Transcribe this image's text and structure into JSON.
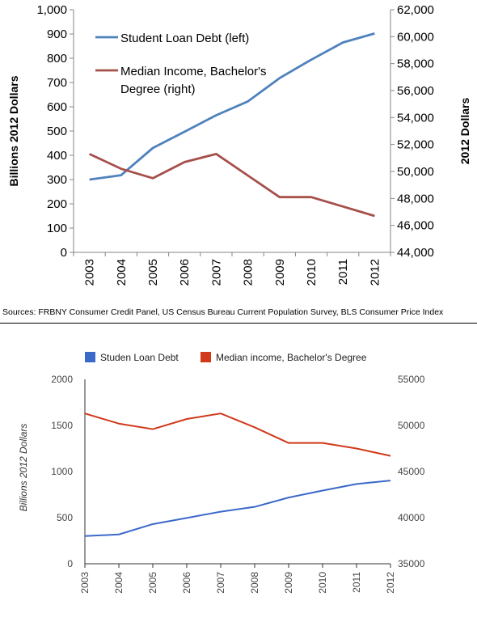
{
  "chart_data": [
    {
      "type": "line",
      "x": [
        "2003",
        "2004",
        "2005",
        "2006",
        "2007",
        "2008",
        "2009",
        "2010",
        "2011",
        "2012"
      ],
      "ylabel": "Billions 2012 Dollars",
      "y2label": "2012 Dollars",
      "ylim": [
        0,
        1000
      ],
      "y2lim": [
        44000,
        62000
      ],
      "yticks": [
        "0",
        "100",
        "200",
        "300",
        "400",
        "500",
        "600",
        "700",
        "800",
        "900",
        "1,000"
      ],
      "y2ticks": [
        "44,000",
        "46,000",
        "48,000",
        "50,000",
        "52,000",
        "54,000",
        "56,000",
        "58,000",
        "60,000",
        "62,000"
      ],
      "grid": false,
      "legend_position": "top-left",
      "series": [
        {
          "name": "Student Loan Debt (left)",
          "axis": "left",
          "color": "#4f81bd",
          "values": [
            300,
            318,
            430,
            497,
            565,
            622,
            718,
            794,
            865,
            902
          ]
        },
        {
          "name": "Median Income, Bachelor's Degree (right)",
          "axis": "right",
          "color": "#a5504b",
          "values": [
            51300,
            50200,
            49500,
            50700,
            51300,
            49700,
            48100,
            48100,
            47400,
            46700
          ]
        }
      ],
      "legend_lines": [
        [
          "Student Loan Debt (left)"
        ],
        [
          "Median Income, Bachelor's",
          "Degree (right)"
        ]
      ]
    },
    {
      "type": "line",
      "x": [
        "2003",
        "2004",
        "2005",
        "2006",
        "2007",
        "2008",
        "2009",
        "2010",
        "2011",
        "2012"
      ],
      "ylabel": "Billions 2012 Dollars",
      "ylim": [
        0,
        2000
      ],
      "y2lim": [
        35000,
        55000
      ],
      "yticks": [
        "0",
        "500",
        "1000",
        "1500",
        "2000"
      ],
      "y2ticks": [
        "35000",
        "40000",
        "45000",
        "50000",
        "55000"
      ],
      "grid": false,
      "legend_position": "top",
      "series": [
        {
          "name": "Studen Loan Debt",
          "axis": "left",
          "color": "#3b69c9",
          "values": [
            300,
            318,
            430,
            497,
            565,
            617,
            718,
            794,
            865,
            902
          ]
        },
        {
          "name": "Median income, Bachelor's Degree",
          "axis": "right",
          "color": "#d0391a",
          "values": [
            51300,
            50200,
            49600,
            50700,
            51300,
            49800,
            48100,
            48100,
            47500,
            46700
          ]
        }
      ]
    }
  ],
  "sources_text": "Sources: FRBNY Consumer Credit Panel, US Census Bureau Current Population Survey, BLS Consumer Price Index"
}
